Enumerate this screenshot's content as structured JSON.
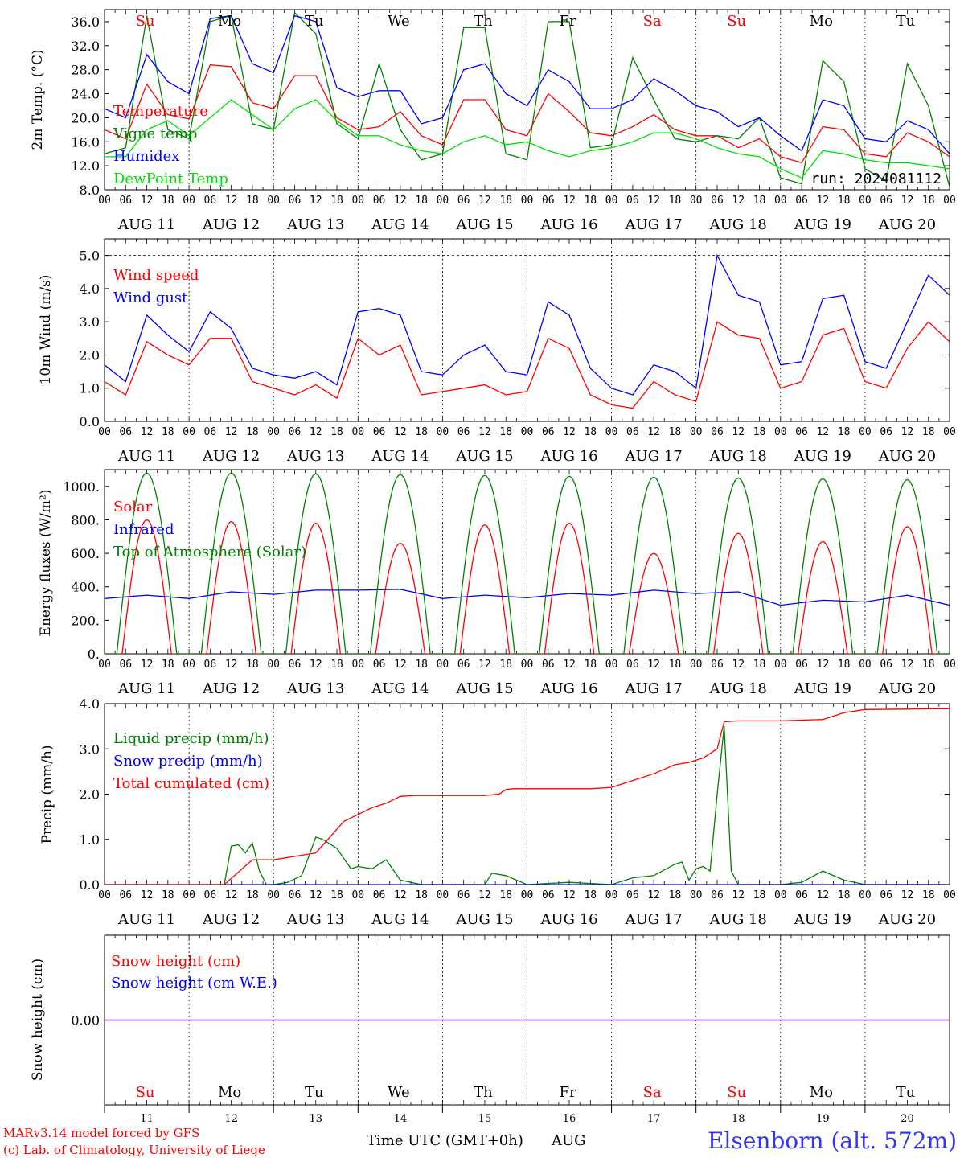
{
  "colors": {
    "red": "#ff0000",
    "green": "#008000",
    "blue": "#0000ff",
    "lightgreen": "#00e000",
    "purple": "#7f00ff",
    "black": "#000000"
  },
  "footer": {
    "model_line": "MARv3.14 model forced by GFS",
    "lab_line": "(c) Lab. of Climatology, University of Liege",
    "time_label": "Time UTC (GMT+0h)",
    "month_label": "AUG",
    "station": "Elsenborn (alt. 572m)"
  },
  "days": {
    "weekdays": [
      "Su",
      "Mo",
      "Tu",
      "We",
      "Th",
      "Fr",
      "Sa",
      "Su",
      "Mo",
      "Tu"
    ],
    "weekday_red": [
      true,
      false,
      false,
      false,
      false,
      false,
      true,
      true,
      false,
      false
    ],
    "date_labels": [
      "AUG 11",
      "AUG 12",
      "AUG 13",
      "AUG 14",
      "AUG 15",
      "AUG 16",
      "AUG 17",
      "AUG 18",
      "AUG 19",
      "AUG 20"
    ],
    "day_numbers": [
      "11",
      "12",
      "13",
      "14",
      "15",
      "16",
      "17",
      "18",
      "19",
      "20"
    ],
    "hour_labels": [
      "00",
      "06",
      "12",
      "18"
    ],
    "final_hour_label": "00"
  },
  "chart_data": [
    {
      "type": "line",
      "ylabel": "2m Temp. (°C)",
      "ylim": [
        8,
        38
      ],
      "yticks": [
        "8.0",
        "12.0",
        "16.0",
        "20.0",
        "24.0",
        "28.0",
        "32.0",
        "36.0"
      ],
      "ytick_values": [
        8,
        12,
        16,
        20,
        24,
        28,
        32,
        36
      ],
      "x_units": "hours from AUG 11 00 UTC",
      "annotation": "run: 2024081112",
      "series": [
        {
          "name": "Temperature",
          "color": "red",
          "x": [
            0,
            6,
            12,
            18,
            24,
            30,
            36,
            42,
            48,
            54,
            60,
            66,
            72,
            78,
            84,
            90,
            96,
            102,
            108,
            114,
            120,
            126,
            132,
            138,
            144,
            150,
            156,
            162,
            168,
            174,
            180,
            186,
            192,
            198,
            204,
            210,
            216,
            222,
            228,
            234,
            240
          ],
          "y": [
            18,
            16.5,
            25.6,
            20.5,
            19.8,
            28.8,
            28.5,
            22.5,
            21.5,
            27,
            27,
            20,
            18,
            18.5,
            21,
            17,
            15.5,
            23,
            23,
            18,
            17,
            24,
            21,
            17.5,
            17,
            18.5,
            20.5,
            18,
            17,
            17,
            15,
            16.5,
            13.5,
            12.5,
            18.5,
            18,
            14,
            13.5,
            17.5,
            16,
            13.5
          ]
        },
        {
          "name": "Vigne temp",
          "color": "green",
          "x": [
            0,
            6,
            12,
            18,
            24,
            30,
            36,
            42,
            48,
            54,
            60,
            66,
            72,
            78,
            84,
            90,
            96,
            102,
            108,
            114,
            120,
            126,
            132,
            138,
            144,
            150,
            156,
            162,
            168,
            174,
            180,
            186,
            192,
            198,
            204,
            210,
            216,
            222,
            228,
            234,
            240
          ],
          "y": [
            14,
            15,
            37,
            18,
            16.5,
            36,
            37,
            19,
            18,
            37.5,
            34,
            19,
            16.5,
            29,
            18,
            13,
            14,
            35,
            35,
            14,
            13,
            36,
            36,
            15,
            15.5,
            30,
            23,
            16.5,
            16,
            17,
            16.5,
            20,
            10,
            9,
            29.5,
            26,
            11.5,
            9.5,
            29,
            22,
            8.5
          ]
        },
        {
          "name": "Humidex",
          "color": "blue",
          "x": [
            0,
            6,
            12,
            18,
            24,
            30,
            36,
            42,
            48,
            54,
            60,
            66,
            72,
            78,
            84,
            90,
            96,
            102,
            108,
            114,
            120,
            126,
            132,
            138,
            144,
            150,
            156,
            162,
            168,
            174,
            180,
            186,
            192,
            198,
            204,
            210,
            216,
            222,
            228,
            234,
            240
          ],
          "y": [
            21.5,
            20,
            30.5,
            26,
            24,
            36.5,
            37,
            29,
            27.5,
            37,
            36,
            25,
            23.5,
            24.5,
            24.5,
            19,
            20,
            28,
            29,
            24,
            22,
            28,
            26,
            21.5,
            21.5,
            23,
            26.5,
            24.5,
            22,
            21,
            18.5,
            20,
            17,
            14.5,
            23,
            22,
            16.5,
            16,
            19.5,
            18,
            14
          ]
        },
        {
          "name": "DewPoint Temp",
          "color": "lightgreen",
          "x": [
            0,
            6,
            12,
            18,
            24,
            30,
            36,
            42,
            48,
            54,
            60,
            66,
            72,
            78,
            84,
            90,
            96,
            102,
            108,
            114,
            120,
            126,
            132,
            138,
            144,
            150,
            156,
            162,
            168,
            174,
            180,
            186,
            192,
            198,
            204,
            210,
            216,
            222,
            228,
            234,
            240
          ],
          "y": [
            13.5,
            13.5,
            18,
            19.5,
            17,
            20,
            23,
            20.5,
            18,
            21.5,
            23,
            19.5,
            17,
            17,
            15.5,
            14.5,
            14,
            16,
            17,
            15.5,
            16,
            14.5,
            13.5,
            14.5,
            15,
            16,
            17.5,
            17.5,
            16.5,
            15,
            14,
            13.5,
            11.5,
            10,
            14.5,
            14,
            13,
            12.5,
            12.5,
            12,
            11.5
          ]
        }
      ]
    },
    {
      "type": "line",
      "ylabel": "10m Wind (m/s)",
      "ylim": [
        0,
        5.5
      ],
      "yticks": [
        "0.0",
        "1.0",
        "2.0",
        "3.0",
        "4.0",
        "5.0"
      ],
      "ytick_values": [
        0,
        1,
        2,
        3,
        4,
        5
      ],
      "reference_line": 5.0,
      "x_units": "hours from AUG 11 00 UTC",
      "series": [
        {
          "name": "Wind speed",
          "color": "red",
          "x": [
            0,
            6,
            12,
            18,
            24,
            30,
            36,
            42,
            48,
            54,
            60,
            66,
            72,
            78,
            84,
            90,
            96,
            102,
            108,
            114,
            120,
            126,
            132,
            138,
            144,
            150,
            156,
            162,
            168,
            174,
            180,
            186,
            192,
            198,
            204,
            210,
            216,
            222,
            228,
            234,
            240
          ],
          "y": [
            1.2,
            0.8,
            2.4,
            2.0,
            1.7,
            2.5,
            2.5,
            1.2,
            1.0,
            0.8,
            1.1,
            0.7,
            2.5,
            2.0,
            2.3,
            0.8,
            0.9,
            1.0,
            1.1,
            0.8,
            0.9,
            2.5,
            2.2,
            0.8,
            0.5,
            0.4,
            1.2,
            0.8,
            0.6,
            3.0,
            2.6,
            2.5,
            1.0,
            1.2,
            2.6,
            2.8,
            1.2,
            1.0,
            2.2,
            3.0,
            2.4
          ]
        },
        {
          "name": "Wind gust",
          "color": "blue",
          "x": [
            0,
            6,
            12,
            18,
            24,
            30,
            36,
            42,
            48,
            54,
            60,
            66,
            72,
            78,
            84,
            90,
            96,
            102,
            108,
            114,
            120,
            126,
            132,
            138,
            144,
            150,
            156,
            162,
            168,
            174,
            180,
            186,
            192,
            198,
            204,
            210,
            216,
            222,
            228,
            234,
            240
          ],
          "y": [
            1.7,
            1.2,
            3.2,
            2.6,
            2.1,
            3.3,
            2.8,
            1.6,
            1.4,
            1.3,
            1.5,
            1.1,
            3.3,
            3.4,
            3.2,
            1.5,
            1.4,
            2.0,
            2.3,
            1.5,
            1.4,
            3.6,
            3.2,
            1.6,
            1.0,
            0.8,
            1.7,
            1.5,
            1.0,
            5.0,
            3.8,
            3.6,
            1.7,
            1.8,
            3.7,
            3.8,
            1.8,
            1.6,
            3.0,
            4.4,
            3.8
          ]
        }
      ]
    },
    {
      "type": "line",
      "ylabel": "Energy fluxes (W/m²)",
      "ylim": [
        0,
        1100
      ],
      "yticks": [
        "0.",
        "200.",
        "400.",
        "600.",
        "800.",
        "1000."
      ],
      "ytick_values": [
        0,
        200,
        400,
        600,
        800,
        1000
      ],
      "x_units": "hours from AUG 11 00 UTC",
      "daily_peaks": {
        "top_of_atmosphere": [
          1080,
          1080,
          1075,
          1070,
          1065,
          1060,
          1055,
          1050,
          1045,
          1040
        ],
        "solar": [
          800,
          790,
          780,
          660,
          770,
          780,
          600,
          720,
          670,
          760
        ]
      },
      "series": [
        {
          "name": "Solar",
          "color": "red"
        },
        {
          "name": "Infrared",
          "color": "blue",
          "x": [
            0,
            12,
            24,
            36,
            48,
            60,
            72,
            84,
            96,
            108,
            120,
            132,
            144,
            156,
            168,
            180,
            192,
            204,
            216,
            228,
            240
          ],
          "y": [
            330,
            350,
            330,
            370,
            355,
            380,
            380,
            385,
            330,
            350,
            335,
            360,
            350,
            380,
            360,
            370,
            290,
            320,
            310,
            350,
            290
          ]
        },
        {
          "name": "Top of Atmosphere (Solar)",
          "color": "green"
        }
      ]
    },
    {
      "type": "line",
      "ylabel": "Precip (mm/h)",
      "ylim": [
        0,
        4.0
      ],
      "yticks": [
        "0.0",
        "1.0",
        "2.0",
        "3.0",
        "4.0"
      ],
      "ytick_values": [
        0,
        1,
        2,
        3,
        4
      ],
      "x_units": "hours from AUG 11 00 UTC",
      "series": [
        {
          "name": "Liquid precip (mm/h)",
          "color": "green",
          "x": [
            0,
            24,
            34,
            36,
            38,
            40,
            42,
            44,
            46,
            48,
            52,
            56,
            60,
            62,
            66,
            70,
            72,
            76,
            80,
            84,
            90,
            96,
            108,
            110,
            114,
            120,
            132,
            144,
            150,
            156,
            162,
            164,
            166,
            168,
            170,
            172,
            174,
            176,
            178,
            180,
            186,
            192,
            198,
            204,
            210,
            216,
            240
          ],
          "y": [
            0,
            0,
            0,
            0.85,
            0.88,
            0.7,
            0.92,
            0.3,
            0,
            0,
            0.05,
            0.2,
            1.05,
            1.0,
            0.8,
            0.35,
            0.4,
            0.35,
            0.55,
            0.1,
            0,
            0,
            0,
            0.25,
            0.2,
            0,
            0.05,
            0,
            0.15,
            0.2,
            0.45,
            0.5,
            0.1,
            0.35,
            0.4,
            0.3,
            2.0,
            3.5,
            0.3,
            0,
            0,
            0,
            0.05,
            0.3,
            0.1,
            0,
            0
          ]
        },
        {
          "name": "Snow precip (mm/h)",
          "color": "blue",
          "x": [
            0,
            240
          ],
          "y": [
            0,
            0
          ]
        },
        {
          "name": "Total cumulated (cm)",
          "color": "red",
          "x": [
            0,
            34,
            42,
            48,
            52,
            60,
            64,
            68,
            72,
            76,
            80,
            84,
            88,
            96,
            102,
            108,
            112,
            114,
            116,
            120,
            126,
            132,
            138,
            144,
            150,
            156,
            162,
            166,
            170,
            174,
            176,
            180,
            192,
            204,
            210,
            216,
            228,
            240
          ],
          "y": [
            0,
            0,
            0.55,
            0.55,
            0.6,
            0.7,
            1.05,
            1.4,
            1.55,
            1.7,
            1.8,
            1.95,
            1.97,
            1.97,
            1.97,
            1.97,
            2.0,
            2.1,
            2.12,
            2.12,
            2.12,
            2.12,
            2.12,
            2.15,
            2.3,
            2.45,
            2.65,
            2.7,
            2.8,
            3.0,
            3.6,
            3.62,
            3.62,
            3.65,
            3.8,
            3.87,
            3.88,
            3.89
          ]
        }
      ]
    },
    {
      "type": "line",
      "ylabel": "Snow height (cm)",
      "yticks": [
        "0.00"
      ],
      "ytick_values": [
        0
      ],
      "x_units": "hours from AUG 11 00 UTC",
      "series": [
        {
          "name": "Snow height (cm)",
          "color": "red",
          "x": [
            0,
            240
          ],
          "y": [
            0,
            0
          ]
        },
        {
          "name": "Snow height (cm W.E.)",
          "color": "blue",
          "x": [
            0,
            240
          ],
          "y": [
            0,
            0
          ]
        }
      ]
    }
  ]
}
